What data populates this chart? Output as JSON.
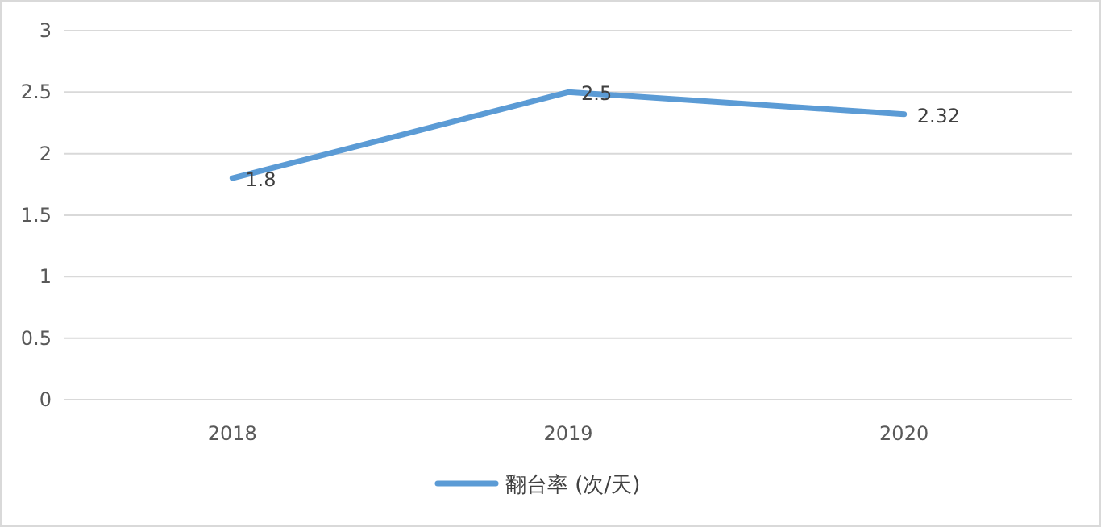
{
  "chart_data": {
    "type": "line",
    "categories": [
      "2018",
      "2019",
      "2020"
    ],
    "series": [
      {
        "name": "翻台率 (次/天)",
        "color": "#5b9bd5",
        "values": [
          1.8,
          2.5,
          2.32
        ]
      }
    ],
    "ylim": [
      0,
      3
    ],
    "yticks": [
      0,
      0.5,
      1,
      1.5,
      2,
      2.5,
      3
    ],
    "grid": "y",
    "legend": "bottom",
    "data_labels": true
  }
}
